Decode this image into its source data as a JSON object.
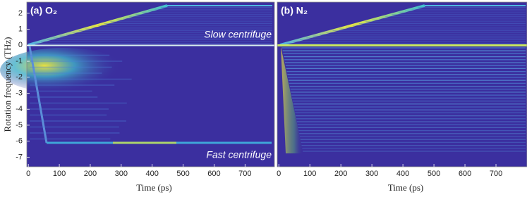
{
  "chart_data": [
    {
      "type": "heatmap",
      "title": "(a) O₂",
      "xlabel": "Time (ps)",
      "ylabel": "Rotation frequency (THz)",
      "annotations": [
        "Slow centrifuge",
        "Fast centrifuge"
      ],
      "xlim": [
        -5,
        795
      ],
      "xticks": [
        0,
        100,
        200,
        300,
        400,
        500,
        600,
        700
      ],
      "ylim": [
        -7.6,
        2.7
      ],
      "yticks": [
        -7,
        -6,
        -5,
        -4,
        -3,
        -2,
        -1,
        0,
        1,
        2
      ]
    },
    {
      "type": "heatmap",
      "title": "(b) N₂",
      "xlabel": "Time (ps)",
      "xlim": [
        -5,
        800
      ],
      "xticks": [
        0,
        100,
        200,
        300,
        400,
        500,
        600,
        700
      ],
      "ylim": [
        -7.6,
        2.7
      ]
    }
  ]
}
